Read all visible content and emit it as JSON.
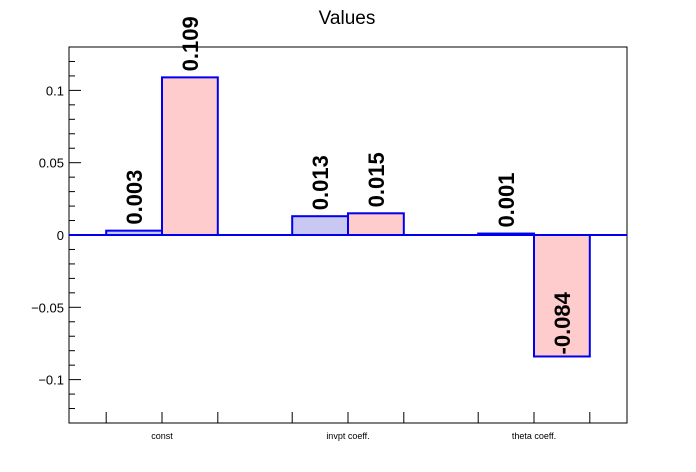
{
  "chart_data": {
    "type": "bar",
    "title": "Values",
    "xlabel": "",
    "ylabel": "",
    "categories": [
      "const",
      "invpt coeff.",
      "theta coeff."
    ],
    "series": [
      {
        "color": "#c8c8f2",
        "values": [
          0.003,
          0.013,
          0.001
        ],
        "labels": [
          "0.003",
          "0.013",
          "0.001"
        ]
      },
      {
        "color": "#fecccc",
        "values": [
          0.109,
          0.015,
          -0.084
        ],
        "labels": [
          "0.109",
          "0.015",
          "-0.084"
        ]
      }
    ],
    "ylim": [
      -0.13,
      0.13
    ],
    "yticks": [
      -0.1,
      -0.05,
      0,
      0.05,
      0.1
    ],
    "ytick_labels": [
      "−0.1",
      "−0.05",
      "0",
      "0.05",
      "0.1"
    ],
    "grid": false,
    "legend": "none",
    "colors": {
      "outline": "#0000ee",
      "axis": "#000000"
    }
  }
}
